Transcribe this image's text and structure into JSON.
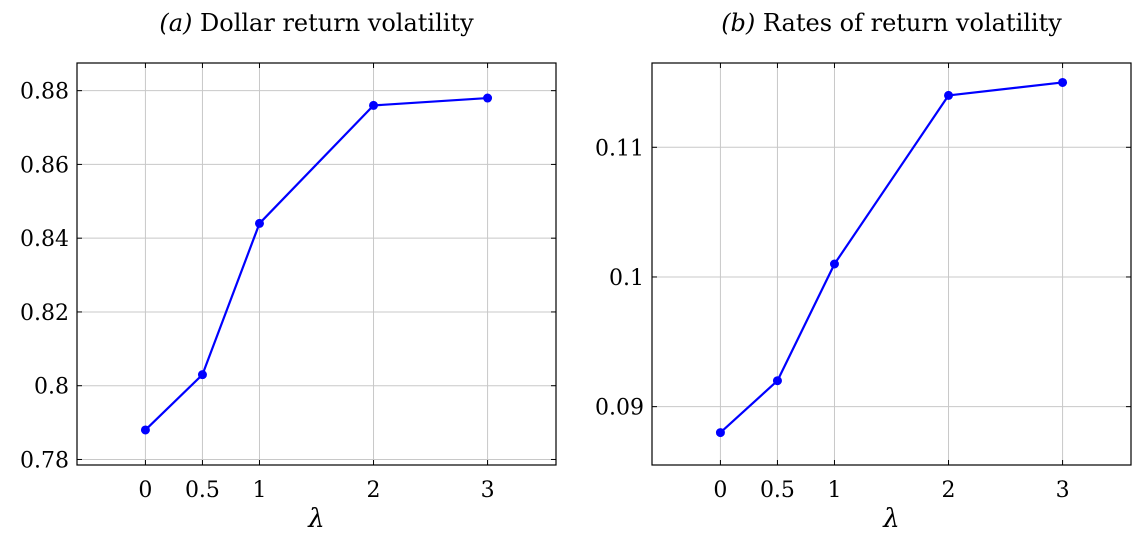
{
  "chart_data": [
    {
      "type": "line",
      "title": "(a) Dollar return volatility",
      "title_prefix": "(a)",
      "title_text": "Dollar return volatility",
      "xlabel": "λ",
      "ylabel": "",
      "x_ticks": [
        "0",
        "0.5",
        "1",
        "2",
        "3"
      ],
      "y_ticks": [
        "0.78",
        "0.8",
        "0.82",
        "0.84",
        "0.86",
        "0.88"
      ],
      "xlim": [
        -0.6,
        3.6
      ],
      "ylim": [
        0.7785,
        0.8875
      ],
      "grid": true,
      "series": [
        {
          "color": "#0000ff",
          "points": [
            {
              "x": 0,
              "y": 0.788
            },
            {
              "x": 0.5,
              "y": 0.803
            },
            {
              "x": 1,
              "y": 0.844
            },
            {
              "x": 2,
              "y": 0.876
            },
            {
              "x": 3,
              "y": 0.878
            }
          ]
        }
      ]
    },
    {
      "type": "line",
      "title": "(b) Rates of return volatility",
      "title_prefix": "(b)",
      "title_text": "Rates of return volatility",
      "xlabel": "λ",
      "ylabel": "",
      "x_ticks": [
        "0",
        "0.5",
        "1",
        "2",
        "3"
      ],
      "y_ticks": [
        "0.09",
        "0.1",
        "0.11"
      ],
      "xlim": [
        -0.6,
        3.6
      ],
      "ylim": [
        0.0855,
        0.1165
      ],
      "grid": true,
      "series": [
        {
          "color": "#0000ff",
          "points": [
            {
              "x": 0,
              "y": 0.088
            },
            {
              "x": 0.5,
              "y": 0.092
            },
            {
              "x": 1,
              "y": 0.101
            },
            {
              "x": 2,
              "y": 0.114
            },
            {
              "x": 3,
              "y": 0.115
            }
          ]
        }
      ]
    }
  ]
}
